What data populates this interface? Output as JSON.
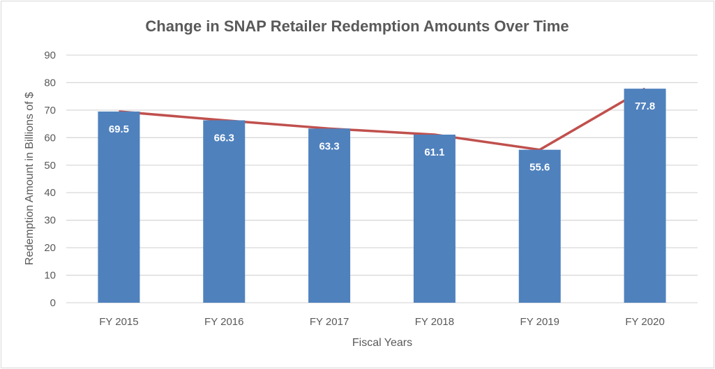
{
  "chart_data": {
    "type": "bar",
    "title": "Change in SNAP Retailer Redemption Amounts Over Time",
    "xlabel": "Fiscal Years",
    "ylabel": "Redemption Amount in Billions of $",
    "categories": [
      "FY 2015",
      "FY 2016",
      "FY 2017",
      "FY 2018",
      "FY 2019",
      "FY 2020"
    ],
    "values": [
      69.5,
      66.3,
      63.3,
      61.1,
      55.6,
      77.8
    ],
    "data_labels": [
      "69.5",
      "66.3",
      "63.3",
      "61.1",
      "55.6",
      "77.8"
    ],
    "ylim": [
      0,
      90
    ],
    "yticks": [
      0,
      10,
      20,
      30,
      40,
      50,
      60,
      70,
      80,
      90
    ],
    "grid": true,
    "overlay_line": true,
    "colors": {
      "bar": "#4f81bd",
      "line": "#c0504d",
      "grid": "#d9d9d9"
    }
  }
}
